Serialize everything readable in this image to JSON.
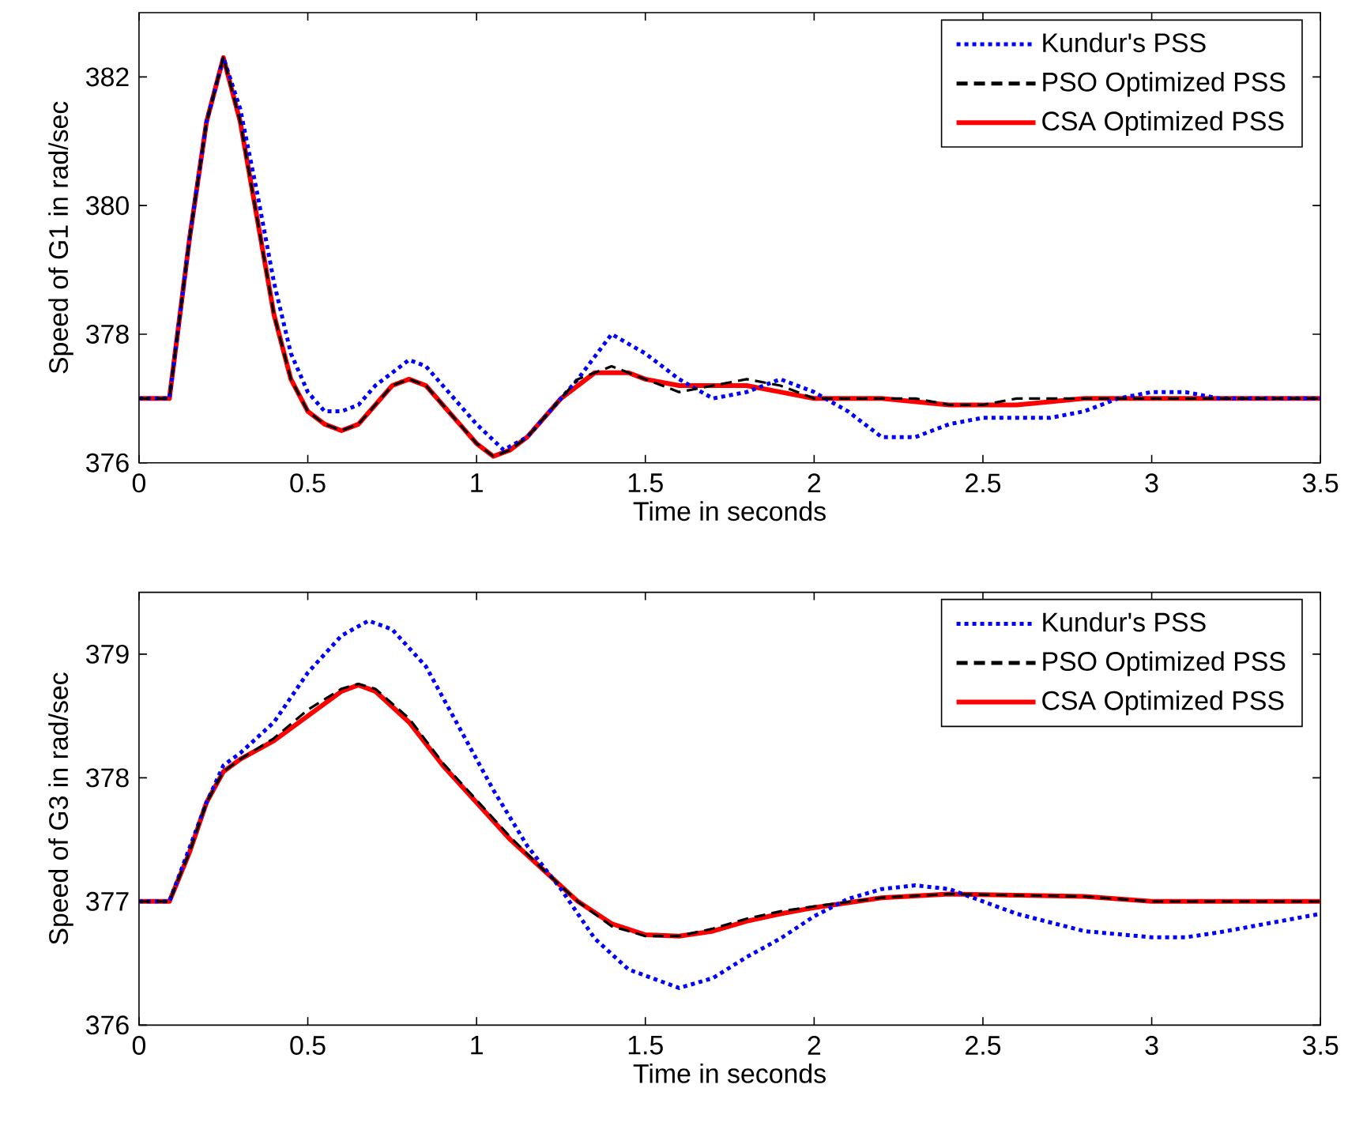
{
  "chart_data": [
    {
      "type": "line",
      "xlabel": "Time in seconds",
      "ylabel": "Speed of G1 in rad/sec",
      "xlim": [
        0,
        3.5
      ],
      "ylim": [
        376,
        383
      ],
      "xticks": [
        0,
        0.5,
        1,
        1.5,
        2,
        2.5,
        3,
        3.5
      ],
      "yticks": [
        376,
        378,
        380,
        382
      ],
      "legend": "top right",
      "grid": false,
      "marker": "none",
      "series": [
        {
          "name": "Kundur's PSS",
          "color": "#0000ff",
          "line_style": "dotted",
          "x": [
            0,
            0.09,
            0.15,
            0.2,
            0.25,
            0.3,
            0.35,
            0.4,
            0.45,
            0.5,
            0.55,
            0.6,
            0.65,
            0.7,
            0.75,
            0.8,
            0.85,
            0.9,
            0.95,
            1.0,
            1.08,
            1.15,
            1.2,
            1.3,
            1.4,
            1.5,
            1.6,
            1.7,
            1.8,
            1.9,
            2.0,
            2.1,
            2.2,
            2.3,
            2.4,
            2.5,
            2.7,
            2.8,
            2.9,
            3.0,
            3.1,
            3.2,
            3.5
          ],
          "values": [
            377,
            377,
            379.5,
            381.3,
            382.3,
            381.5,
            380.2,
            378.8,
            377.7,
            377.1,
            376.8,
            376.8,
            376.9,
            377.2,
            377.4,
            377.6,
            377.5,
            377.2,
            376.9,
            376.6,
            376.2,
            376.4,
            376.7,
            377.3,
            378.0,
            377.7,
            377.3,
            377.0,
            377.1,
            377.3,
            377.1,
            376.8,
            376.4,
            376.4,
            376.6,
            376.7,
            376.7,
            376.8,
            377.0,
            377.1,
            377.1,
            377.0,
            377.0
          ]
        },
        {
          "name": "PSO Optimized PSS",
          "color": "#000000",
          "line_style": "dashed",
          "x": [
            0,
            0.09,
            0.15,
            0.2,
            0.25,
            0.3,
            0.35,
            0.4,
            0.45,
            0.5,
            0.55,
            0.6,
            0.65,
            0.7,
            0.75,
            0.8,
            0.85,
            0.9,
            0.95,
            1.0,
            1.05,
            1.1,
            1.15,
            1.2,
            1.25,
            1.3,
            1.35,
            1.4,
            1.45,
            1.5,
            1.6,
            1.7,
            1.8,
            1.9,
            2.0,
            2.3,
            2.4,
            2.5,
            2.6,
            2.7,
            2.8,
            3.0,
            3.5
          ],
          "values": [
            377,
            377,
            379.5,
            381.3,
            382.3,
            381.3,
            379.8,
            378.3,
            377.3,
            376.8,
            376.6,
            376.5,
            376.6,
            376.9,
            377.2,
            377.3,
            377.2,
            376.9,
            376.6,
            376.3,
            376.1,
            376.2,
            376.4,
            376.7,
            377.0,
            377.3,
            377.4,
            377.5,
            377.4,
            377.3,
            377.1,
            377.2,
            377.3,
            377.2,
            377.0,
            377.0,
            376.9,
            376.9,
            377.0,
            377.0,
            377.0,
            377.0,
            377.0
          ]
        },
        {
          "name": "CSA Optimized PSS",
          "color": "#ff0000",
          "line_style": "solid",
          "x": [
            0,
            0.09,
            0.15,
            0.2,
            0.25,
            0.3,
            0.35,
            0.4,
            0.45,
            0.5,
            0.55,
            0.6,
            0.65,
            0.7,
            0.75,
            0.8,
            0.85,
            0.9,
            0.95,
            1.0,
            1.05,
            1.1,
            1.15,
            1.2,
            1.25,
            1.3,
            1.35,
            1.4,
            1.45,
            1.5,
            1.6,
            1.7,
            1.8,
            1.9,
            2.0,
            2.2,
            2.4,
            2.6,
            2.8,
            3.0,
            3.5
          ],
          "values": [
            377,
            377,
            379.5,
            381.3,
            382.3,
            381.3,
            379.8,
            378.3,
            377.3,
            376.8,
            376.6,
            376.5,
            376.6,
            376.9,
            377.2,
            377.3,
            377.2,
            376.9,
            376.6,
            376.3,
            376.1,
            376.2,
            376.4,
            376.7,
            377.0,
            377.2,
            377.4,
            377.4,
            377.4,
            377.3,
            377.2,
            377.2,
            377.2,
            377.1,
            377.0,
            377.0,
            376.9,
            376.9,
            377.0,
            377.0,
            377.0
          ]
        }
      ]
    },
    {
      "type": "line",
      "xlabel": "Time in seconds",
      "ylabel": "Speed of G3 in rad/sec",
      "xlim": [
        0,
        3.5
      ],
      "ylim": [
        376,
        379.5
      ],
      "xticks": [
        0,
        0.5,
        1,
        1.5,
        2,
        2.5,
        3,
        3.5
      ],
      "yticks": [
        376,
        377,
        378,
        379
      ],
      "legend": "top right",
      "grid": false,
      "marker": "none",
      "series": [
        {
          "name": "Kundur's PSS",
          "color": "#0000ff",
          "line_style": "dotted",
          "x": [
            0,
            0.09,
            0.2,
            0.25,
            0.3,
            0.4,
            0.5,
            0.6,
            0.68,
            0.75,
            0.85,
            0.95,
            1.05,
            1.15,
            1.25,
            1.35,
            1.45,
            1.6,
            1.7,
            1.8,
            1.9,
            2.0,
            2.1,
            2.2,
            2.3,
            2.4,
            2.5,
            2.6,
            2.8,
            3.0,
            3.1,
            3.2,
            3.4,
            3.5
          ],
          "values": [
            377,
            377,
            377.8,
            378.1,
            378.2,
            378.45,
            378.85,
            379.15,
            379.27,
            379.2,
            378.9,
            378.4,
            377.9,
            377.45,
            377.1,
            376.7,
            376.45,
            376.3,
            376.38,
            376.55,
            376.7,
            376.88,
            377.02,
            377.1,
            377.13,
            377.1,
            377.0,
            376.9,
            376.76,
            376.71,
            376.71,
            376.75,
            376.85,
            376.9
          ]
        },
        {
          "name": "PSO Optimized PSS",
          "color": "#000000",
          "line_style": "dashed",
          "x": [
            0,
            0.09,
            0.15,
            0.2,
            0.25,
            0.3,
            0.4,
            0.5,
            0.6,
            0.65,
            0.7,
            0.8,
            0.9,
            1.0,
            1.1,
            1.2,
            1.3,
            1.4,
            1.5,
            1.6,
            1.7,
            1.8,
            1.9,
            2.0,
            2.2,
            2.4,
            2.6,
            2.8,
            3.0,
            3.5
          ],
          "values": [
            377,
            377,
            377.4,
            377.8,
            378.05,
            378.15,
            378.32,
            378.55,
            378.72,
            378.76,
            378.72,
            378.48,
            378.12,
            377.82,
            377.52,
            377.25,
            377.0,
            376.8,
            376.72,
            376.72,
            376.78,
            376.86,
            376.92,
            376.96,
            377.03,
            377.06,
            377.05,
            377.04,
            377.0,
            377.0
          ]
        },
        {
          "name": "CSA Optimized PSS",
          "color": "#ff0000",
          "line_style": "solid",
          "x": [
            0,
            0.09,
            0.15,
            0.2,
            0.25,
            0.3,
            0.4,
            0.5,
            0.6,
            0.65,
            0.7,
            0.8,
            0.9,
            1.0,
            1.1,
            1.2,
            1.3,
            1.4,
            1.5,
            1.6,
            1.7,
            1.8,
            1.9,
            2.0,
            2.2,
            2.4,
            2.6,
            2.8,
            3.0,
            3.5
          ],
          "values": [
            377,
            377,
            377.4,
            377.8,
            378.05,
            378.15,
            378.3,
            378.5,
            378.7,
            378.75,
            378.7,
            378.45,
            378.1,
            377.8,
            377.5,
            377.25,
            377.0,
            376.82,
            376.73,
            376.72,
            376.76,
            376.84,
            376.9,
            376.95,
            377.03,
            377.06,
            377.05,
            377.04,
            377.0,
            377.0
          ]
        }
      ]
    }
  ]
}
